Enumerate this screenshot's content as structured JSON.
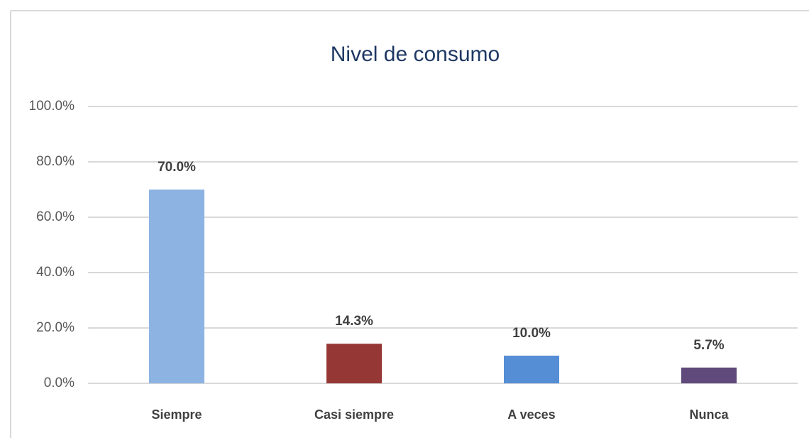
{
  "chart_data": {
    "type": "bar",
    "title": "Nivel de consumo",
    "categories": [
      "Siempre",
      "Casi siempre",
      "A veces",
      "Nunca"
    ],
    "values": [
      70.0,
      14.3,
      10.0,
      5.7
    ],
    "value_labels": [
      "70.0%",
      "14.3%",
      "10.0%",
      "5.7%"
    ],
    "colors": [
      "#8db3e2",
      "#953735",
      "#558ed5",
      "#604a7b"
    ],
    "ylim": [
      0,
      100
    ],
    "yticks": [
      {
        "value": 0,
        "label": "0.0%"
      },
      {
        "value": 20,
        "label": "20.0%"
      },
      {
        "value": 40,
        "label": "40.0%"
      },
      {
        "value": 60,
        "label": "60.0%"
      },
      {
        "value": 80,
        "label": "80.0%"
      },
      {
        "value": 100,
        "label": "100.0%"
      }
    ],
    "grid": true
  }
}
